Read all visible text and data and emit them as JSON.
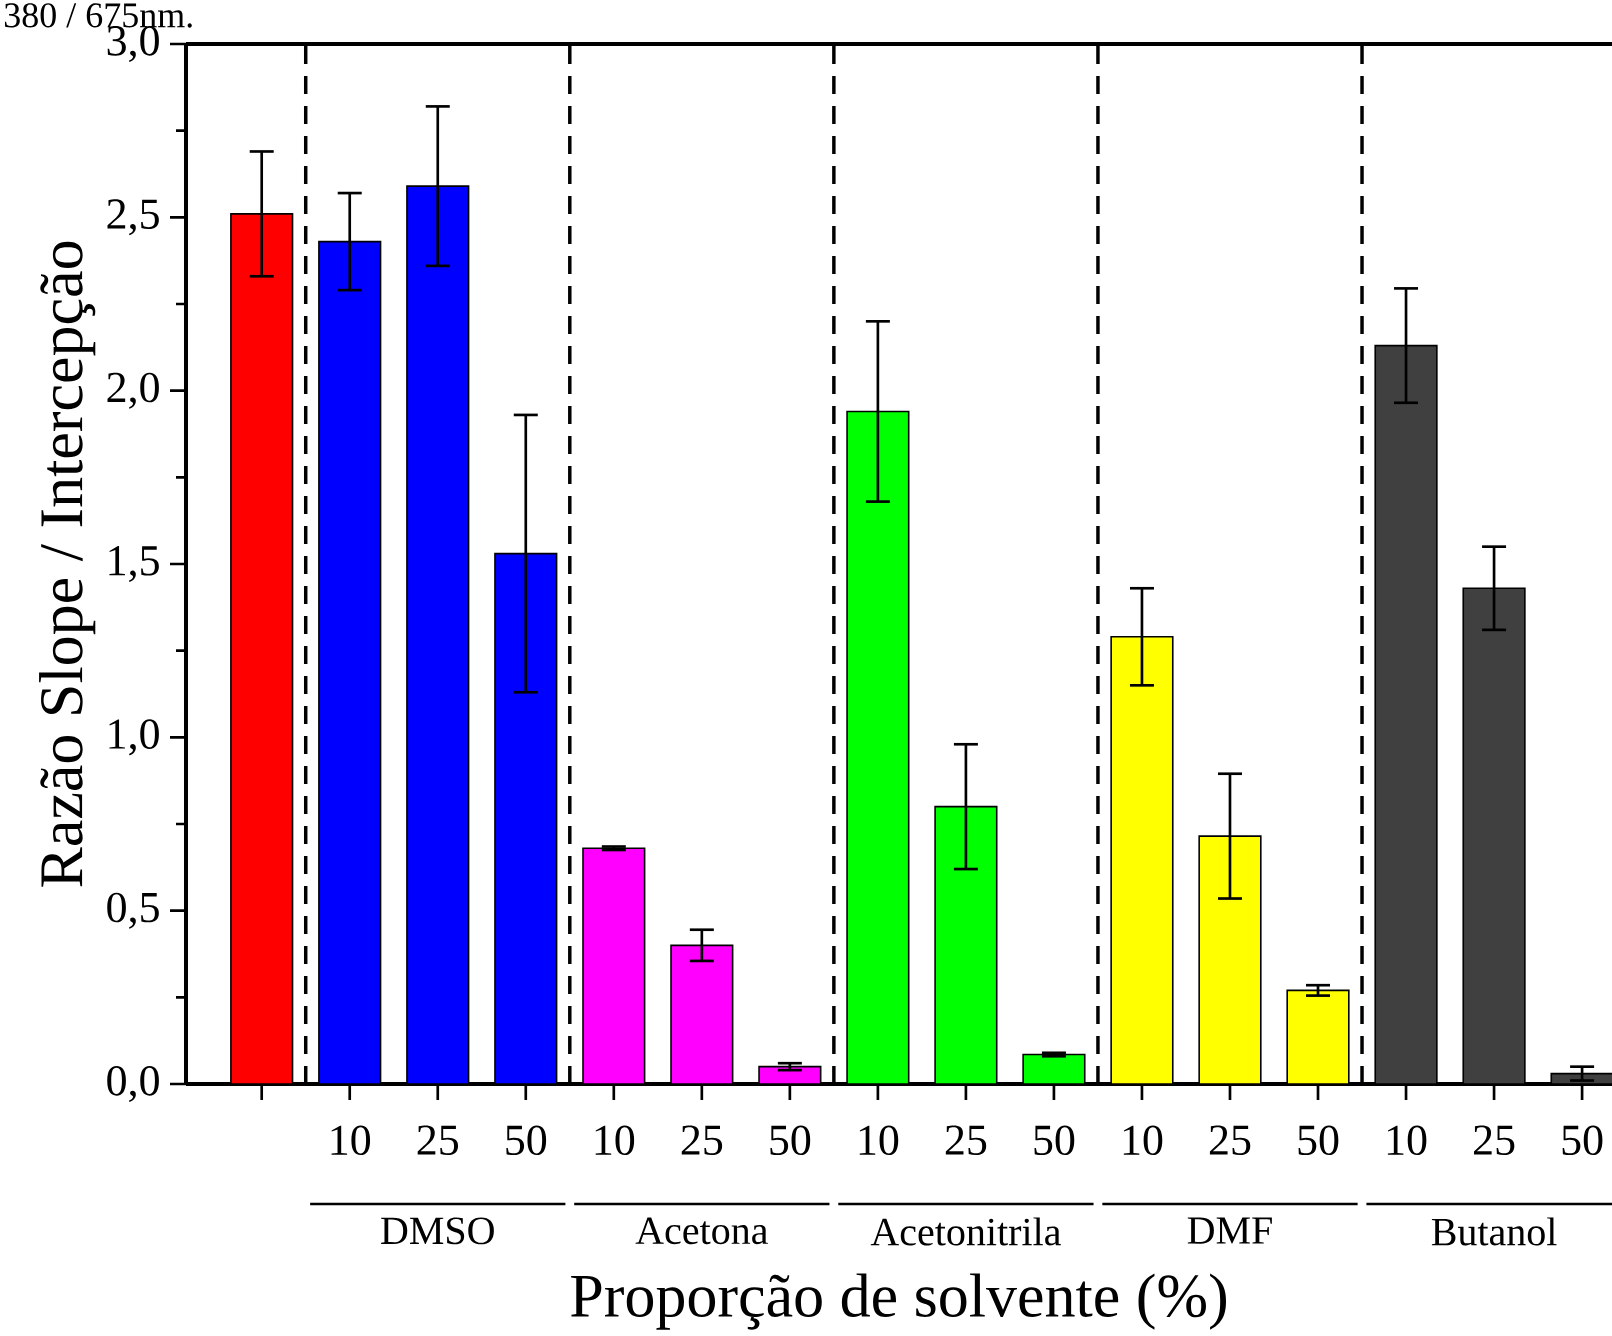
{
  "chart_data": {
    "type": "bar",
    "xlabel": "Proporção de solvente (%)",
    "ylabel": "Razão Slope / Intercepção",
    "categories": [
      null,
      "10",
      "25",
      "50",
      "10",
      "25",
      "50",
      "10",
      "25",
      "50",
      "10",
      "25",
      "50",
      "10",
      "25",
      "50"
    ],
    "values": [
      2.51,
      2.43,
      2.59,
      1.53,
      0.68,
      0.4,
      0.05,
      1.94,
      0.8,
      0.085,
      1.29,
      0.715,
      0.27,
      2.13,
      1.43,
      0.03
    ],
    "errors": [
      0.18,
      0.14,
      0.23,
      0.4,
      0.005,
      0.045,
      0.01,
      0.26,
      0.18,
      0.005,
      0.14,
      0.18,
      0.015,
      0.165,
      0.12,
      0.02
    ],
    "colors": [
      "#ff0000",
      "#0000ff",
      "#0000ff",
      "#0000ff",
      "#ff00ff",
      "#ff00ff",
      "#ff00ff",
      "#00ff00",
      "#00ff00",
      "#00ff00",
      "#ffff00",
      "#ffff00",
      "#ffff00",
      "#404040",
      "#404040",
      "#404040"
    ],
    "ylim": [
      0,
      3
    ],
    "yticks": [
      {
        "value": 0,
        "label": "0,0"
      },
      {
        "value": 0.5,
        "label": "0,5"
      },
      {
        "value": 1,
        "label": "1,0"
      },
      {
        "value": 1.5,
        "label": "1,5"
      },
      {
        "value": 2,
        "label": "2,0"
      },
      {
        "value": 2.5,
        "label": "2,5"
      },
      {
        "value": 3,
        "label": "3,0"
      }
    ],
    "annotations": [
      "380 / 675nm.",
      "DMSO",
      "Acetona",
      "Acetonitrila",
      "DMF",
      "Butanol"
    ]
  }
}
